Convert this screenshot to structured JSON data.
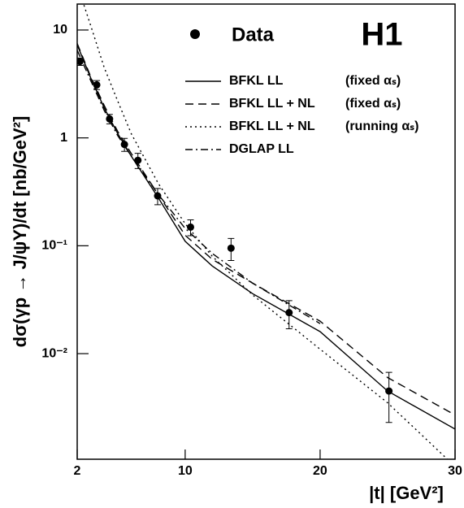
{
  "chart_data": {
    "type": "scatter",
    "annotation": "H1",
    "x_label": "|t| [GeV²]",
    "y_label": "dσ(γp → J/ψY)/dt [nb/GeV²]",
    "log_y": true,
    "xlim": [
      2,
      30
    ],
    "xticks": [
      2,
      10,
      20,
      30
    ],
    "ylim": [
      0.00105,
      17.4
    ],
    "yticks": [
      {
        "value": 0.01,
        "label": "10⁻²"
      },
      {
        "value": 0.1,
        "label": "10⁻¹"
      },
      1,
      10
    ],
    "data": {
      "name": "Data",
      "color": "#000000",
      "x": [
        2.2,
        3.45,
        4.4,
        5.5,
        6.5,
        7.96,
        10.4,
        13.4,
        17.7,
        25.1
      ],
      "values": [
        5.1,
        3.1,
        1.5,
        0.87,
        0.62,
        0.29,
        0.149,
        0.095,
        0.024,
        0.0045
      ],
      "errors": [
        0.4,
        0.3,
        0.15,
        0.12,
        0.1,
        0.05,
        0.025,
        0.022,
        0.007,
        0.0022
      ]
    },
    "series": [
      {
        "name": "BFKL LL",
        "note": "(fixed αₛ)",
        "style": "solid",
        "color": "#000000",
        "x": [
          2,
          3,
          4,
          5,
          6,
          8,
          10,
          12,
          15,
          20,
          25,
          30
        ],
        "values": [
          7.3,
          3.6,
          1.9,
          1.1,
          0.68,
          0.28,
          0.11,
          0.065,
          0.036,
          0.016,
          0.0045,
          0.002
        ]
      },
      {
        "name": "BFKL LL + NL",
        "note": "(fixed αₛ)",
        "style": "dashed",
        "color": "#000000",
        "x": [
          2,
          3,
          4,
          5,
          6,
          8,
          10,
          12,
          15,
          20,
          25,
          30
        ],
        "values": [
          7.5,
          3.7,
          2.0,
          1.15,
          0.72,
          0.3,
          0.125,
          0.075,
          0.045,
          0.02,
          0.006,
          0.0027
        ]
      },
      {
        "name": "BFKL LL + NL",
        "note": "(running αₛ)",
        "style": "dotted",
        "color": "#000000",
        "x": [
          2.5,
          3,
          4,
          5,
          6,
          8,
          10,
          12,
          15,
          20,
          25,
          30
        ],
        "values": [
          17,
          11,
          4.5,
          2.2,
          1.1,
          0.38,
          0.16,
          0.08,
          0.035,
          0.011,
          0.0035,
          0.0009
        ]
      },
      {
        "name": "DGLAP LL",
        "style": "dashdot",
        "color": "#000000",
        "x": [
          2,
          3,
          4,
          5,
          6,
          8,
          10,
          12,
          15,
          20
        ],
        "values": [
          6.5,
          3.4,
          1.8,
          1.05,
          0.68,
          0.3,
          0.145,
          0.085,
          0.045,
          0.019
        ]
      }
    ]
  }
}
